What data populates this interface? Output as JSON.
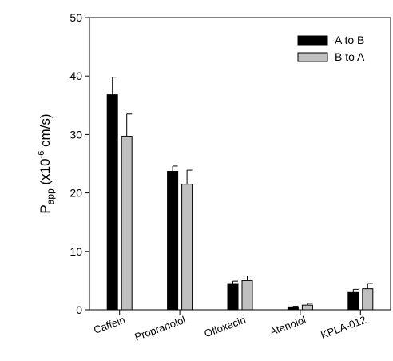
{
  "chart_data": {
    "type": "bar",
    "categories": [
      "Caffein",
      "Propranolol",
      "Ofloxacin",
      "Atenolol",
      "KPLA-012"
    ],
    "series": [
      {
        "name": "A to B",
        "values": [
          36.8,
          23.7,
          4.5,
          0.5,
          3.1
        ],
        "errors": [
          3.0,
          0.9,
          0.4,
          0.1,
          0.4
        ],
        "color": "#000000"
      },
      {
        "name": "B to A",
        "values": [
          29.7,
          21.5,
          5.0,
          0.8,
          3.6
        ],
        "errors": [
          3.8,
          2.4,
          0.8,
          0.3,
          0.9
        ],
        "color": "#c0c0c0"
      }
    ],
    "ylabel": {
      "main": "P",
      "sub": "app",
      "unit_open": " (x10",
      "sup": "-6",
      "unit_close": " cm/s)"
    },
    "ylim": [
      0,
      50
    ],
    "yticks": [
      "0",
      "10",
      "20",
      "30",
      "40",
      "50"
    ],
    "legend_position": "top-right",
    "grid": false
  }
}
